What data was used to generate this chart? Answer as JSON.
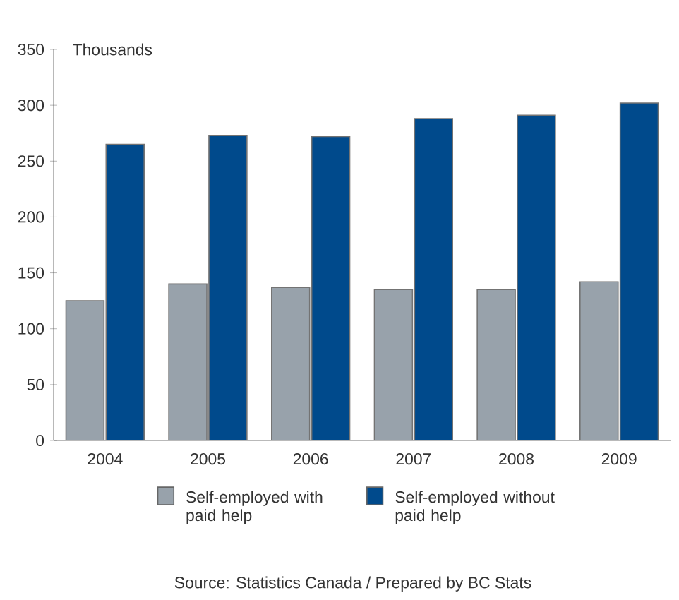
{
  "chart_data": {
    "type": "bar",
    "ylabel": "Thousands",
    "categories": [
      "2004",
      "2005",
      "2006",
      "2007",
      "2008",
      "2009"
    ],
    "series": [
      {
        "name": "Self-employed with paid help",
        "color": "#98a2ab",
        "values": [
          125,
          140,
          137,
          135,
          135,
          142
        ]
      },
      {
        "name": "Self-employed without paid help",
        "color": "#004a8c",
        "values": [
          265,
          273,
          272,
          288,
          291,
          302
        ]
      }
    ],
    "ylim": [
      0,
      350
    ],
    "yticks": [
      0,
      50,
      100,
      150,
      200,
      250,
      300,
      350
    ],
    "grid": false,
    "legend": "bottom",
    "annotations": [
      "Source: Statistics Canada / Prepared by BC Stats"
    ]
  }
}
